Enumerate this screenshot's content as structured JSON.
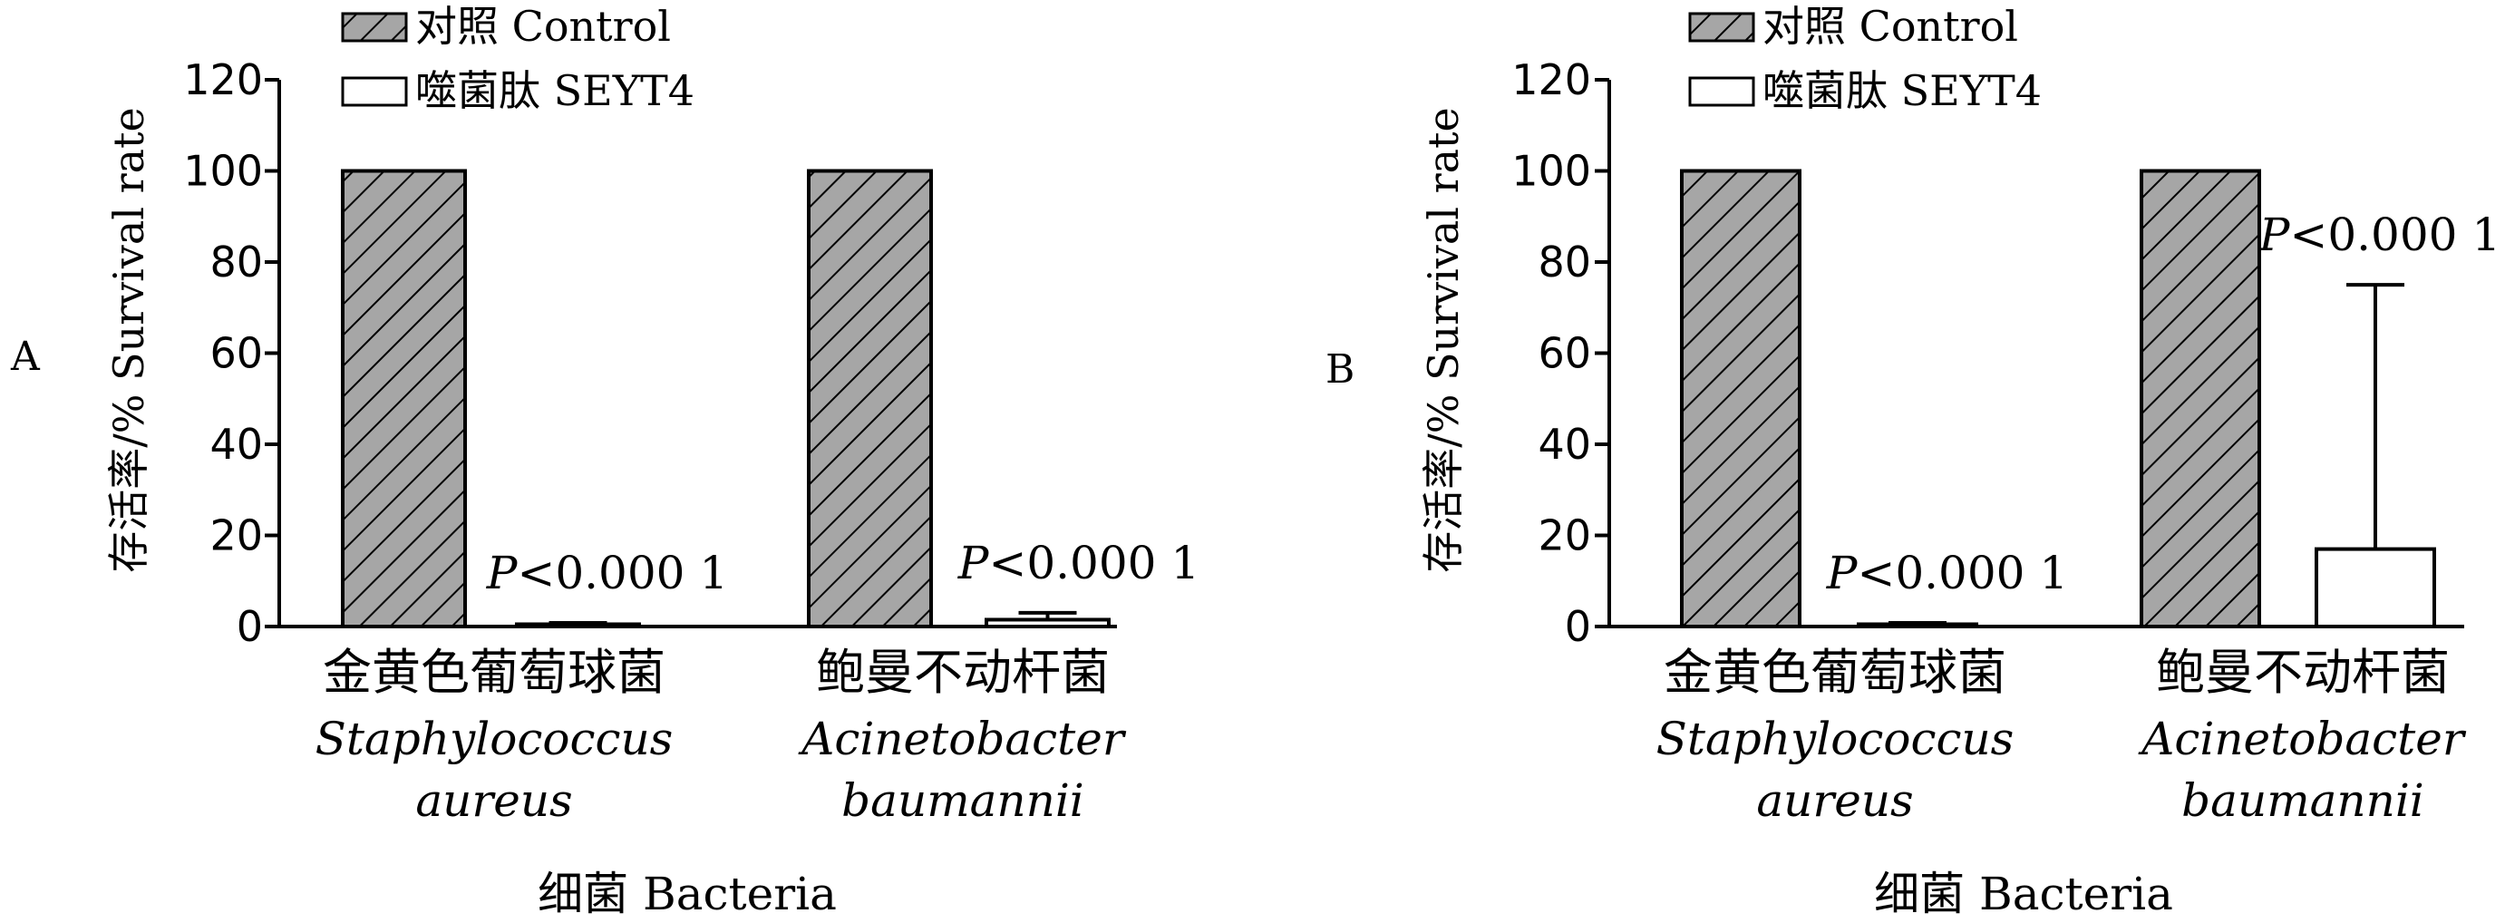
{
  "chart_data": [
    {
      "panel_label": "A",
      "type": "bar",
      "ylabel": "存活率/%  Survival rate",
      "xlabel": "细菌 Bacteria",
      "ylim": [
        0,
        120
      ],
      "yticks": [
        0,
        20,
        40,
        60,
        80,
        100,
        120
      ],
      "categories": [
        {
          "zh": "金黄色葡萄球菌",
          "latin_1": "Staphylococcus",
          "latin_2": "aureus"
        },
        {
          "zh": "鲍曼不动杆菌",
          "latin_1": "Acinetobacter",
          "latin_2": "baumannii"
        }
      ],
      "series": [
        {
          "name": "对照 Control",
          "pattern": "hatch",
          "values": [
            100,
            100
          ],
          "error": [
            0,
            0
          ]
        },
        {
          "name": "噬菌肽 SEYT4",
          "pattern": "open",
          "values": [
            0.5,
            1.5
          ],
          "error": [
            0.3,
            1.5
          ]
        }
      ],
      "annotations": [
        {
          "category": 0,
          "series": 1,
          "p_prefix": "P",
          "p_rest": "<0.000 1"
        },
        {
          "category": 1,
          "series": 1,
          "p_prefix": "P",
          "p_rest": "<0.000 1"
        }
      ],
      "legend_position": "top-left"
    },
    {
      "panel_label": "B",
      "type": "bar",
      "ylabel": "存活率/%  Survival rate",
      "xlabel": "细菌 Bacteria",
      "ylim": [
        0,
        120
      ],
      "yticks": [
        0,
        20,
        40,
        60,
        80,
        100,
        120
      ],
      "categories": [
        {
          "zh": "金黄色葡萄球菌",
          "latin_1": "Staphylococcus",
          "latin_2": "aureus"
        },
        {
          "zh": "鲍曼不动杆菌",
          "latin_1": "Acinetobacter",
          "latin_2": "baumannii"
        }
      ],
      "series": [
        {
          "name": "对照 Control",
          "pattern": "hatch",
          "values": [
            100,
            100
          ],
          "error": [
            0,
            0
          ]
        },
        {
          "name": "噬菌肽 SEYT4",
          "pattern": "open",
          "values": [
            0.5,
            17
          ],
          "error": [
            0.3,
            58
          ]
        }
      ],
      "annotations": [
        {
          "category": 0,
          "series": 1,
          "p_prefix": "P",
          "p_rest": "<0.000 1"
        },
        {
          "category": 1,
          "series": 1,
          "p_prefix": "P",
          "p_rest": "<0.000 1"
        }
      ],
      "legend_position": "top-left"
    }
  ],
  "colors": {
    "hatch_fill": "#a6a6a6",
    "hatch_line": "#000000",
    "open_fill": "#ffffff",
    "stroke": "#000000"
  }
}
